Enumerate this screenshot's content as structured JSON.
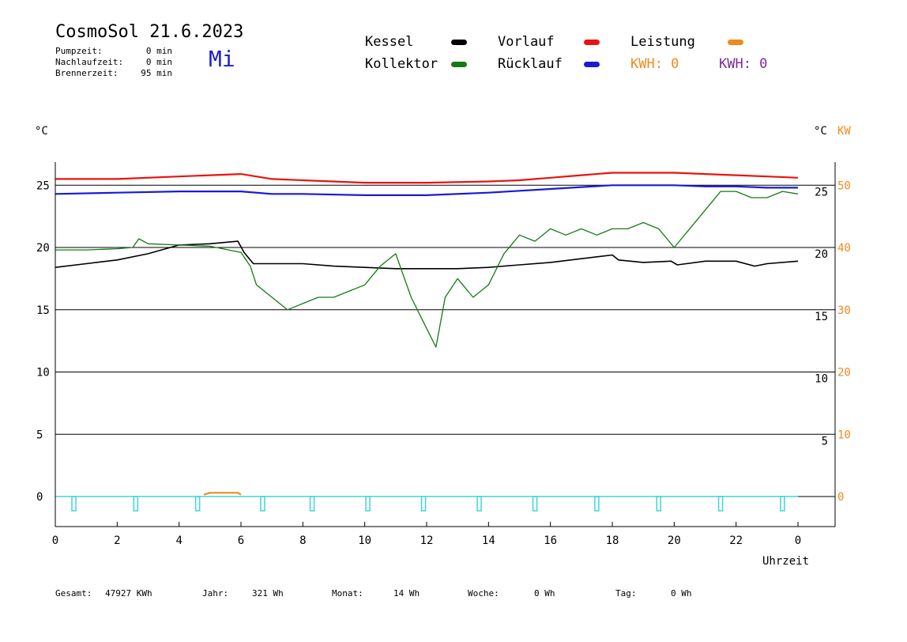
{
  "header": {
    "title": "CosmoSol 21.6.2023",
    "day_of_week": "Mi",
    "stats": [
      {
        "label": "Pumpzeit:",
        "value": "0 min"
      },
      {
        "label": "Nachlaufzeit:",
        "value": "0 min"
      },
      {
        "label": "Brennerzeit:",
        "value": "95 min"
      }
    ]
  },
  "legend": {
    "kessel": "Kessel",
    "vorlauf": "Vorlauf",
    "leistung": "Leistung",
    "kollektor": "Kollektor",
    "ruecklauf": "Rücklauf",
    "kwh_orange": "KWH: 0",
    "kwh_purple": "KWH: 0",
    "colors": {
      "kessel": "#000000",
      "vorlauf": "#e8140f",
      "leistung": "#f08a1c",
      "kollektor": "#157a15",
      "ruecklauf": "#1a1ad6",
      "kwh_purple": "#7a2a9a",
      "pulses": "#3fd6d6"
    }
  },
  "axes": {
    "left_unit": "°C",
    "right_unit_c": "°C",
    "right_unit_kw": "KW",
    "xlabel": "Uhrzeit",
    "x_ticks": [
      "0",
      "2",
      "4",
      "6",
      "8",
      "10",
      "12",
      "14",
      "16",
      "18",
      "20",
      "22",
      "0"
    ],
    "left_ticks": [
      "0",
      "5",
      "10",
      "15",
      "20",
      "25"
    ],
    "right_c_ticks": [
      "5",
      "10",
      "15",
      "20",
      "25"
    ],
    "right_kw_ticks": [
      "0",
      "10",
      "20",
      "30",
      "40",
      "50"
    ]
  },
  "footer": {
    "gesamt_label": "Gesamt:",
    "gesamt_value": "47927 KWh",
    "jahr_label": "Jahr:",
    "jahr_value": "321 Wh",
    "monat_label": "Monat:",
    "monat_value": "14 Wh",
    "woche_label": "Woche:",
    "woche_value": "0 Wh",
    "tag_label": "Tag:",
    "tag_value": "0 Wh"
  },
  "chart_data": {
    "type": "line",
    "xlabel": "Uhrzeit",
    "ylabel": "°C",
    "xlim": [
      0,
      24
    ],
    "ylim": [
      -2,
      27
    ],
    "grid": true,
    "legend_position": "top",
    "series": [
      {
        "name": "Vorlauf",
        "color": "#e8140f",
        "x": [
          0,
          2,
          4,
          6,
          7,
          8,
          10,
          12,
          14,
          15,
          16,
          17,
          18,
          20,
          21,
          22,
          23,
          24
        ],
        "y": [
          25.5,
          25.5,
          25.7,
          25.9,
          25.5,
          25.4,
          25.2,
          25.2,
          25.3,
          25.4,
          25.6,
          25.8,
          26.0,
          26.0,
          25.9,
          25.8,
          25.7,
          25.6
        ]
      },
      {
        "name": "Rücklauf",
        "color": "#1a1ad6",
        "x": [
          0,
          2,
          4,
          6,
          7,
          8,
          10,
          12,
          14,
          16,
          18,
          20,
          21,
          22,
          23,
          24
        ],
        "y": [
          24.3,
          24.4,
          24.5,
          24.5,
          24.3,
          24.3,
          24.2,
          24.2,
          24.4,
          24.7,
          25.0,
          25.0,
          24.9,
          24.9,
          24.8,
          24.8
        ]
      },
      {
        "name": "Kessel",
        "color": "#000000",
        "x": [
          0,
          1,
          2,
          3,
          4,
          5,
          5.9,
          6.1,
          6.4,
          8,
          9,
          10,
          11,
          12,
          13,
          14,
          15,
          16,
          17,
          18,
          18.2,
          19,
          19.9,
          20.1,
          21,
          22,
          22.6,
          23,
          24
        ],
        "y": [
          18.4,
          18.7,
          19.0,
          19.5,
          20.2,
          20.3,
          20.5,
          19.6,
          18.7,
          18.7,
          18.5,
          18.4,
          18.3,
          18.3,
          18.3,
          18.4,
          18.6,
          18.8,
          19.1,
          19.4,
          19.0,
          18.8,
          18.9,
          18.6,
          18.9,
          18.9,
          18.5,
          18.7,
          18.9
        ]
      },
      {
        "name": "Kollektor",
        "color": "#157a15",
        "x": [
          0,
          1,
          2,
          2.5,
          2.7,
          3,
          4,
          5,
          6,
          6.3,
          6.5,
          7,
          7.5,
          8,
          8.5,
          9,
          9.5,
          10,
          10.5,
          11,
          11.5,
          12,
          12.3,
          12.6,
          13,
          13.5,
          14,
          14.5,
          15,
          15.5,
          16,
          16.5,
          17,
          17.5,
          18,
          18.5,
          19,
          19.5,
          20,
          20.5,
          21,
          21.5,
          22,
          22.5,
          23,
          23.5,
          24
        ],
        "y": [
          19.8,
          19.8,
          19.9,
          20.0,
          20.7,
          20.3,
          20.2,
          20.1,
          19.6,
          18.5,
          17.0,
          16.0,
          15.0,
          15.5,
          16.0,
          16.0,
          16.5,
          17.0,
          18.5,
          19.5,
          16.0,
          13.5,
          12.0,
          16.0,
          17.5,
          16.0,
          17.0,
          19.5,
          21.0,
          20.5,
          21.5,
          21.0,
          21.5,
          21.0,
          21.5,
          21.5,
          22.0,
          21.5,
          20.0,
          21.5,
          23.0,
          24.5,
          24.5,
          24.0,
          24.0,
          24.5,
          24.3
        ]
      },
      {
        "name": "Leistung",
        "color": "#f08a1c",
        "x": [
          4.8,
          5.0,
          5.5,
          5.9,
          6.0
        ],
        "y": [
          0.15,
          0.3,
          0.3,
          0.3,
          0.15
        ]
      }
    ],
    "pulses_x": [
      0.6,
      2.6,
      4.6,
      6.7,
      8.3,
      10.1,
      11.9,
      13.7,
      15.5,
      17.5,
      19.5,
      21.5,
      23.5
    ]
  }
}
